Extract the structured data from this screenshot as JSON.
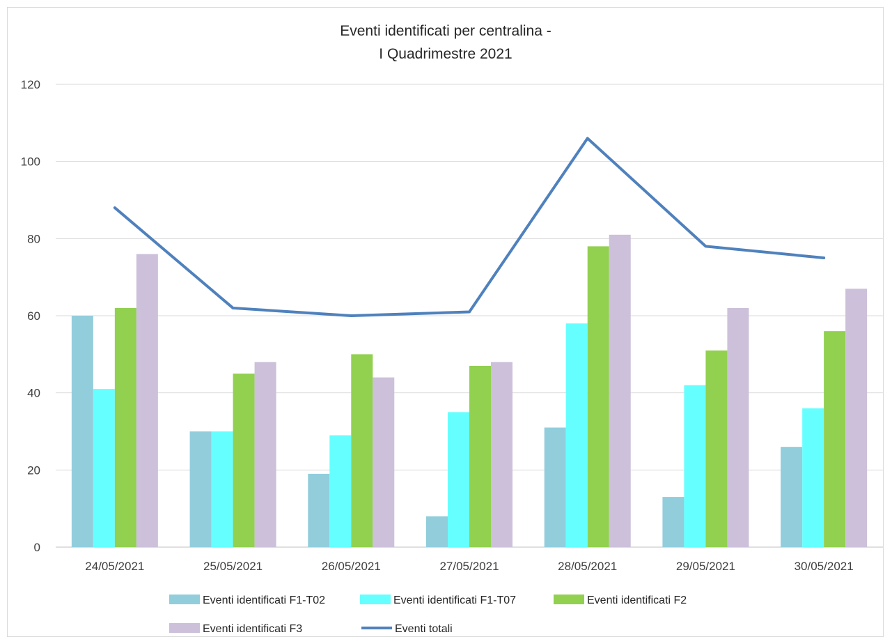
{
  "chart_data": {
    "type": "bar",
    "title": [
      "Eventi identificati per centralina -",
      "I Quadrimestre 2021"
    ],
    "categories": [
      "24/05/2021",
      "25/05/2021",
      "26/05/2021",
      "27/05/2021",
      "28/05/2021",
      "29/05/2021",
      "30/05/2021"
    ],
    "ylim": [
      0,
      120
    ],
    "yticks": [
      0,
      20,
      40,
      60,
      80,
      100,
      120
    ],
    "grid": true,
    "legend_position": "bottom",
    "series": [
      {
        "name": "Eventi identificati F1-T02",
        "kind": "bar",
        "color": "#92cddc",
        "values": [
          60,
          30,
          19,
          8,
          31,
          13,
          26
        ]
      },
      {
        "name": "Eventi identificati F1-T07",
        "kind": "bar",
        "color": "#66ffff",
        "values": [
          41,
          30,
          29,
          35,
          58,
          42,
          36
        ]
      },
      {
        "name": "Eventi identificati F2",
        "kind": "bar",
        "color": "#92d050",
        "values": [
          62,
          45,
          50,
          47,
          78,
          51,
          56
        ]
      },
      {
        "name": "Eventi identificati F3",
        "kind": "bar",
        "color": "#ccc0da",
        "values": [
          76,
          48,
          44,
          48,
          81,
          62,
          67
        ]
      },
      {
        "name": "Eventi totali",
        "kind": "line",
        "color": "#4f81bd",
        "values": [
          88,
          62,
          60,
          61,
          106,
          78,
          75
        ]
      }
    ]
  }
}
